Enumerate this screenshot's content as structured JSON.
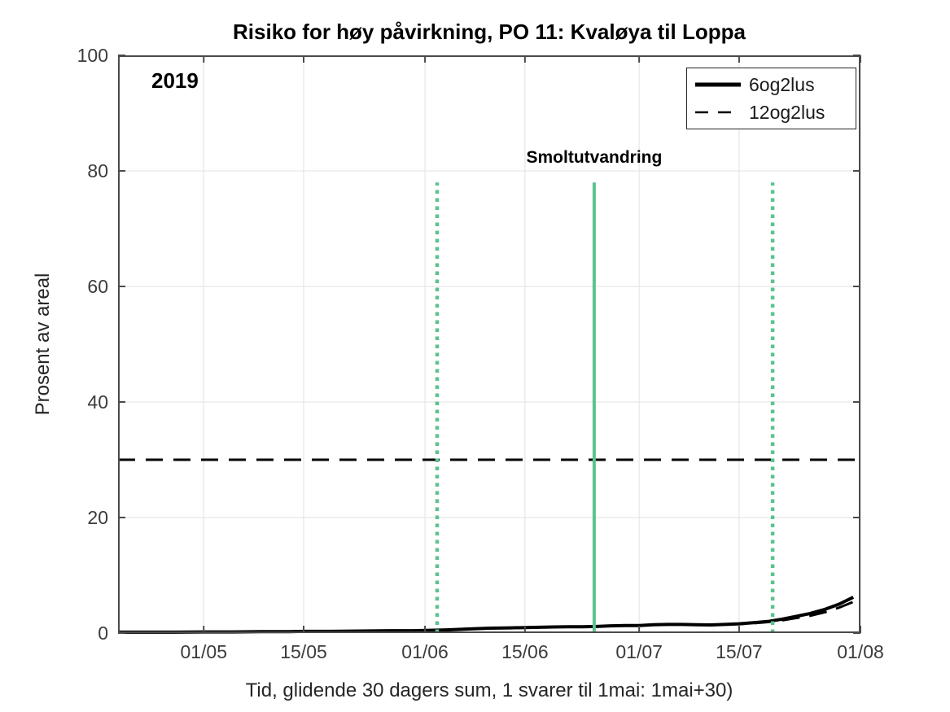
{
  "chart_data": {
    "type": "line",
    "title": "Risiko for høy påvirkning, PO 11: Kvaløya til Loppa",
    "xlabel": "Tid, glidende 30 dagers sum, 1 svarer til 1mai: 1mai+30)",
    "ylabel": "Prosent av areal",
    "ylim": [
      0,
      100
    ],
    "xlim_days": [
      0,
      104
    ],
    "x_ticks": [
      {
        "day": 12,
        "label": "01/05"
      },
      {
        "day": 26,
        "label": "15/05"
      },
      {
        "day": 43,
        "label": "01/06"
      },
      {
        "day": 57,
        "label": "15/06"
      },
      {
        "day": 73,
        "label": "01/07"
      },
      {
        "day": 87,
        "label": "15/07"
      },
      {
        "day": 104,
        "label": "01/08"
      }
    ],
    "y_ticks": [
      0,
      20,
      40,
      60,
      80,
      100
    ],
    "grid": true,
    "legend_position": "top-right",
    "colors": {
      "series": "#000000",
      "event_lines": "#5dc28f",
      "grid": "#e6e6e6",
      "axis": "#4a4a4a",
      "threshold": "#000000"
    },
    "series": [
      {
        "name": "6og2lus",
        "style": "solid",
        "x": [
          0,
          4,
          8,
          12,
          16,
          20,
          24,
          26,
          30,
          34,
          38,
          41,
          43,
          46,
          49,
          52,
          55,
          57,
          59,
          61,
          63,
          65,
          67,
          69,
          71,
          73,
          75,
          77,
          79,
          81,
          83,
          85,
          87,
          89,
          91,
          93,
          95,
          97,
          99,
          101,
          103
        ],
        "y": [
          0.15,
          0.15,
          0.15,
          0.2,
          0.2,
          0.25,
          0.25,
          0.3,
          0.3,
          0.35,
          0.4,
          0.4,
          0.45,
          0.55,
          0.7,
          0.85,
          0.9,
          0.95,
          1.0,
          1.05,
          1.1,
          1.1,
          1.15,
          1.25,
          1.3,
          1.3,
          1.45,
          1.5,
          1.5,
          1.45,
          1.4,
          1.5,
          1.6,
          1.8,
          2.0,
          2.4,
          2.9,
          3.4,
          4.1,
          5.0,
          6.2
        ]
      },
      {
        "name": "12og2lus",
        "style": "dashed",
        "x": [
          0,
          4,
          8,
          12,
          16,
          20,
          24,
          26,
          30,
          34,
          38,
          41,
          43,
          46,
          49,
          52,
          55,
          57,
          59,
          61,
          63,
          65,
          67,
          69,
          71,
          73,
          75,
          77,
          79,
          81,
          83,
          85,
          87,
          89,
          91,
          93,
          95,
          97,
          99,
          101,
          103
        ],
        "y": [
          0.15,
          0.15,
          0.15,
          0.2,
          0.2,
          0.25,
          0.25,
          0.3,
          0.3,
          0.35,
          0.4,
          0.4,
          0.45,
          0.55,
          0.7,
          0.85,
          0.9,
          0.95,
          1.0,
          1.05,
          1.1,
          1.1,
          1.15,
          1.25,
          1.3,
          1.3,
          1.45,
          1.5,
          1.5,
          1.45,
          1.4,
          1.5,
          1.55,
          1.7,
          1.9,
          2.2,
          2.6,
          3.0,
          3.6,
          4.4,
          5.4
        ]
      }
    ],
    "threshold_line": {
      "y": 30,
      "style": "dashed",
      "color": "#000000"
    },
    "event_lines": {
      "label": "Smoltutvandring",
      "color": "#5dc28f",
      "top_value": 78,
      "lines": [
        {
          "day": 44.7,
          "style": "dotted"
        },
        {
          "day": 66.7,
          "style": "solid"
        },
        {
          "day": 91.7,
          "style": "dotted"
        }
      ]
    },
    "annotations": [
      {
        "text": "2019",
        "position": "top-left"
      }
    ]
  }
}
